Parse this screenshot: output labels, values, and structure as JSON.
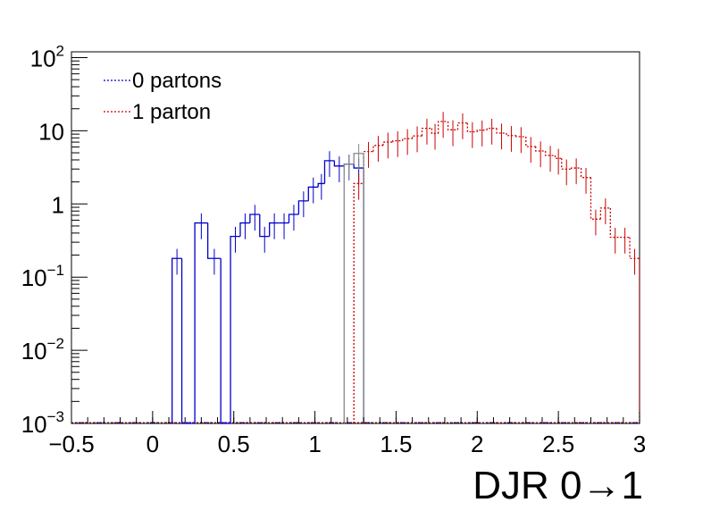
{
  "chart_data": {
    "type": "line",
    "title": "",
    "xlabel": "DJR 0→1",
    "ylabel": "",
    "xlim": [
      -0.5,
      3.0
    ],
    "ylim": [
      0.001,
      120
    ],
    "y_scale": "log",
    "bin_width": 0.06,
    "x_ticks": [
      "−0.5",
      "0",
      "0.5",
      "1",
      "1.5",
      "2",
      "2.5",
      "3"
    ],
    "x_tick_values": [
      -0.5,
      0,
      0.5,
      1,
      1.5,
      2,
      2.5,
      3
    ],
    "y_ticks": [
      {
        "value": 0.001,
        "base": "10",
        "exp": "−3"
      },
      {
        "value": 0.01,
        "base": "10",
        "exp": "−2"
      },
      {
        "value": 0.1,
        "base": "10",
        "exp": "−1"
      },
      {
        "value": 1,
        "base": "1",
        "exp": ""
      },
      {
        "value": 10,
        "base": "10",
        "exp": ""
      },
      {
        "value": 100,
        "base": "10",
        "exp": "2"
      }
    ],
    "legend": {
      "placement": "top-left"
    },
    "colors": {
      "total": "#888888",
      "p0": "#0000cc",
      "p1": "#cc0000",
      "axis": "#000000"
    },
    "series": [
      {
        "name": "0 partons",
        "color": "#0000cc",
        "style": "dotted",
        "bins": [
          {
            "x0": 0.12,
            "x1": 0.18,
            "y": 0.18
          },
          {
            "x0": 0.18,
            "x1": 0.26,
            "y": 0.001
          },
          {
            "x0": 0.26,
            "x1": 0.34,
            "y": 0.55
          },
          {
            "x0": 0.34,
            "x1": 0.42,
            "y": 0.18
          },
          {
            "x0": 0.42,
            "x1": 0.48,
            "y": 0.001
          },
          {
            "x0": 0.48,
            "x1": 0.54,
            "y": 0.36
          },
          {
            "x0": 0.54,
            "x1": 0.6,
            "y": 0.55
          },
          {
            "x0": 0.6,
            "x1": 0.66,
            "y": 0.72
          },
          {
            "x0": 0.66,
            "x1": 0.72,
            "y": 0.36
          },
          {
            "x0": 0.72,
            "x1": 0.78,
            "y": 0.55
          },
          {
            "x0": 0.78,
            "x1": 0.84,
            "y": 0.55
          },
          {
            "x0": 0.84,
            "x1": 0.9,
            "y": 0.72
          },
          {
            "x0": 0.9,
            "x1": 0.96,
            "y": 1.1
          },
          {
            "x0": 0.96,
            "x1": 1.02,
            "y": 1.7
          },
          {
            "x0": 1.02,
            "x1": 1.06,
            "y": 1.9
          },
          {
            "x0": 1.06,
            "x1": 1.12,
            "y": 3.9
          },
          {
            "x0": 1.12,
            "x1": 1.18,
            "y": 3.3
          },
          {
            "x0": 1.18,
            "x1": 1.24,
            "y": 3.5
          },
          {
            "x0": 1.24,
            "x1": 1.3,
            "y": 3.1
          }
        ]
      },
      {
        "name": "1 parton",
        "color": "#cc0000",
        "style": "dotted",
        "bins": [
          {
            "x0": 1.24,
            "x1": 1.3,
            "y": 1.9
          },
          {
            "x0": 1.3,
            "x1": 1.36,
            "y": 5.2
          },
          {
            "x0": 1.36,
            "x1": 1.42,
            "y": 6.3
          },
          {
            "x0": 1.42,
            "x1": 1.48,
            "y": 7.0
          },
          {
            "x0": 1.48,
            "x1": 1.54,
            "y": 7.3
          },
          {
            "x0": 1.54,
            "x1": 1.6,
            "y": 7.8
          },
          {
            "x0": 1.6,
            "x1": 1.66,
            "y": 8.5
          },
          {
            "x0": 1.66,
            "x1": 1.72,
            "y": 10.8
          },
          {
            "x0": 1.72,
            "x1": 1.76,
            "y": 9.2
          },
          {
            "x0": 1.76,
            "x1": 1.82,
            "y": 13.4
          },
          {
            "x0": 1.82,
            "x1": 1.88,
            "y": 10.3
          },
          {
            "x0": 1.88,
            "x1": 1.94,
            "y": 12.8
          },
          {
            "x0": 1.94,
            "x1": 2.0,
            "y": 9.7
          },
          {
            "x0": 2.0,
            "x1": 2.06,
            "y": 10.2
          },
          {
            "x0": 2.06,
            "x1": 2.12,
            "y": 10.8
          },
          {
            "x0": 2.12,
            "x1": 2.18,
            "y": 9.3
          },
          {
            "x0": 2.18,
            "x1": 2.24,
            "y": 8.6
          },
          {
            "x0": 2.24,
            "x1": 2.3,
            "y": 8.3
          },
          {
            "x0": 2.3,
            "x1": 2.36,
            "y": 6.1
          },
          {
            "x0": 2.36,
            "x1": 2.42,
            "y": 5.3
          },
          {
            "x0": 2.42,
            "x1": 2.48,
            "y": 4.6
          },
          {
            "x0": 2.48,
            "x1": 2.52,
            "y": 4.2
          },
          {
            "x0": 2.52,
            "x1": 2.58,
            "y": 3.0
          },
          {
            "x0": 2.58,
            "x1": 2.64,
            "y": 3.1
          },
          {
            "x0": 2.64,
            "x1": 2.7,
            "y": 2.3
          },
          {
            "x0": 2.7,
            "x1": 2.76,
            "y": 0.62
          },
          {
            "x0": 2.76,
            "x1": 2.82,
            "y": 0.88
          },
          {
            "x0": 2.82,
            "x1": 2.88,
            "y": 0.35
          },
          {
            "x0": 2.88,
            "x1": 2.94,
            "y": 0.35
          },
          {
            "x0": 2.94,
            "x1": 3.0,
            "y": 0.18
          }
        ]
      }
    ],
    "total": {
      "color": "#888888",
      "bins": [
        {
          "x0": 1.18,
          "x1": 1.24,
          "y": 3.5
        },
        {
          "x0": 1.24,
          "x1": 1.3,
          "y": 4.9
        }
      ]
    }
  }
}
